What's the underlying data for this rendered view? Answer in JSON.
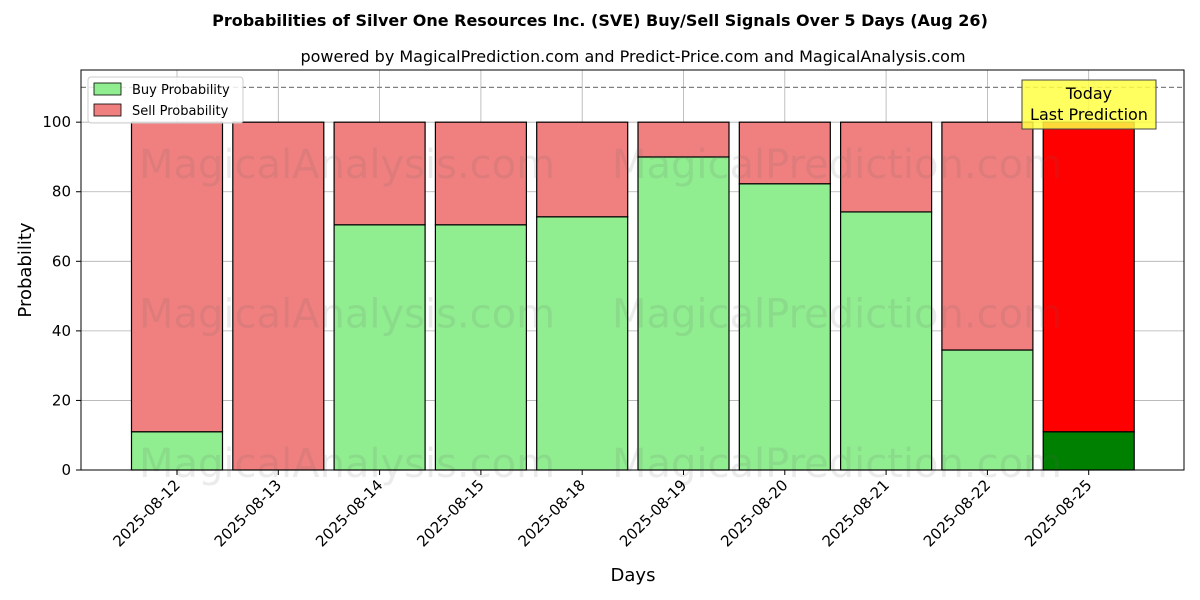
{
  "chart_data": {
    "type": "bar",
    "stacked": true,
    "title": "Probabilities of Silver One Resources Inc. (SVE) Buy/Sell Signals Over 5 Days (Aug 26)",
    "subtitle": "powered by MagicalPrediction.com and Predict-Price.com and MagicalAnalysis.com",
    "xlabel": "Days",
    "ylabel": "Probability",
    "ylim": [
      0,
      115
    ],
    "yticks": [
      0,
      20,
      40,
      60,
      80,
      100
    ],
    "grid": true,
    "legend_position": "top-left",
    "reference_line": 110,
    "categories": [
      "2025-08-12",
      "2025-08-13",
      "2025-08-14",
      "2025-08-15",
      "2025-08-18",
      "2025-08-19",
      "2025-08-20",
      "2025-08-21",
      "2025-08-22",
      "2025-08-25"
    ],
    "series": [
      {
        "name": "Buy Probability",
        "color": "#90ee90",
        "highlight_color": "#008000",
        "values": [
          11,
          0,
          70.5,
          70.5,
          72.8,
          90,
          82.3,
          74.2,
          34.5,
          11
        ]
      },
      {
        "name": "Sell Probability",
        "color": "#f08080",
        "highlight_color": "#ff0000",
        "values": [
          89,
          100,
          29.5,
          29.5,
          27.2,
          10,
          17.7,
          25.8,
          65.5,
          89
        ]
      }
    ],
    "annotation": {
      "line1": "Today",
      "line2": "Last Prediction",
      "color": "#ffff44"
    },
    "watermarks": [
      "MagicalAnalysis.com",
      "MagicalPrediction.com"
    ]
  }
}
